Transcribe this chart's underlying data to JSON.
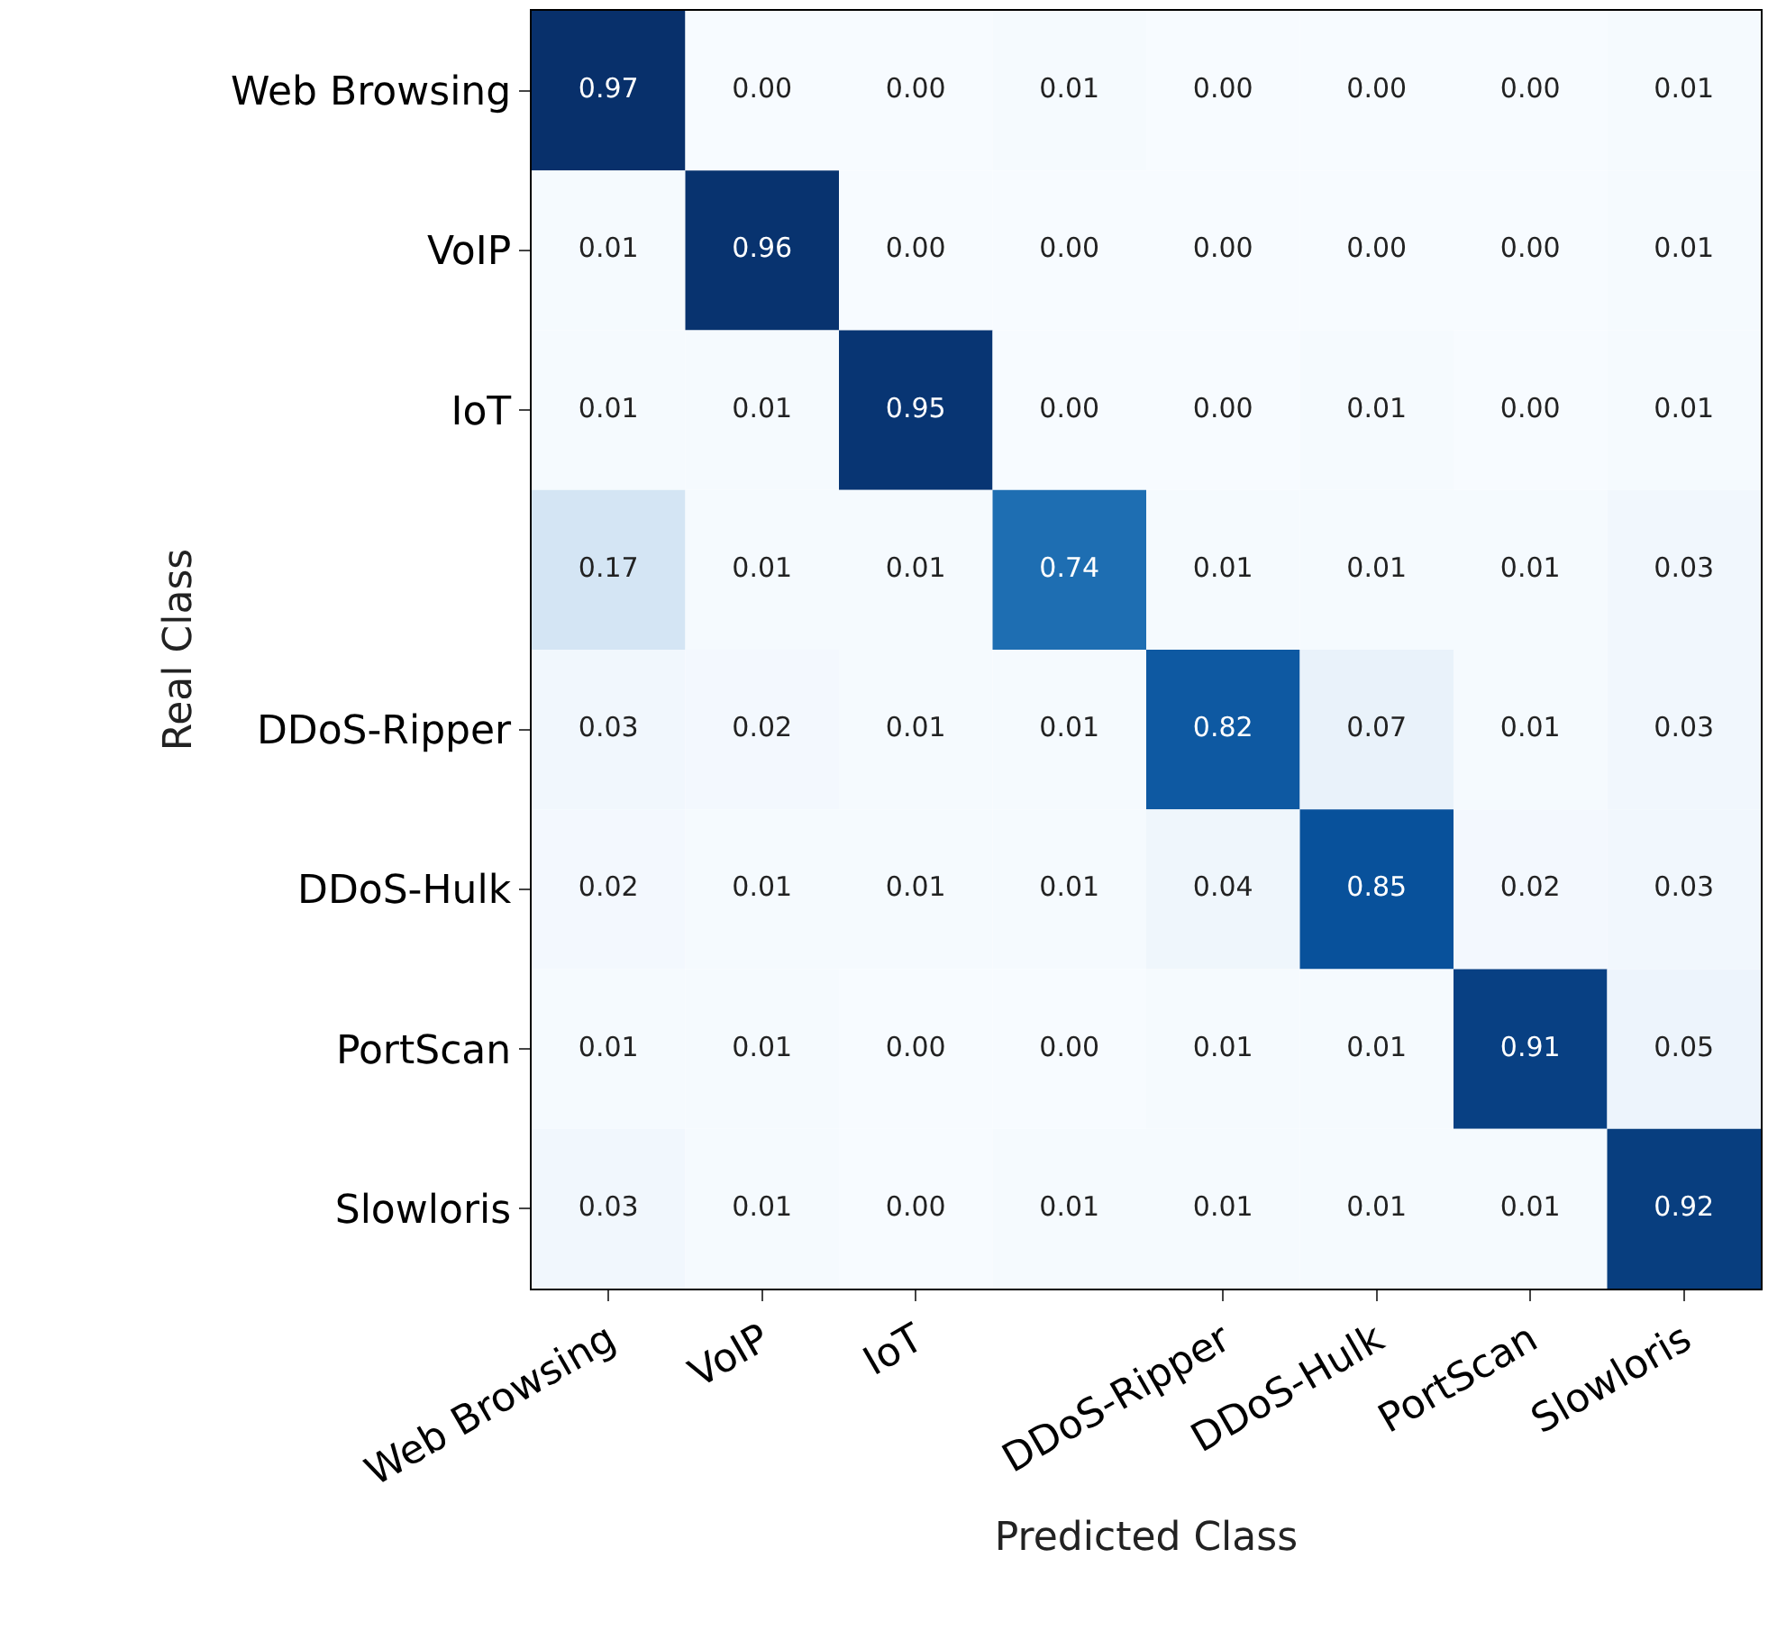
{
  "chart_data": {
    "type": "heatmap",
    "xlabel": "Predicted Class",
    "ylabel": "Real Class",
    "categories": [
      "Web Browsing",
      "VoIP",
      "IoT",
      null,
      "DDoS-Ripper",
      "DDoS-Hulk",
      "PortScan",
      "Slowloris"
    ],
    "y_categories": [
      "Web Browsing",
      "VoIP",
      "IoT",
      null,
      "DDoS-Ripper",
      "DDoS-Hulk",
      "PortScan",
      "Slowloris"
    ],
    "cells": [
      [
        0.97,
        0.0,
        0.0,
        0.01,
        0.0,
        0.0,
        0.0,
        0.01
      ],
      [
        0.01,
        0.96,
        0.0,
        0.0,
        0.0,
        0.0,
        0.0,
        0.01
      ],
      [
        0.01,
        0.01,
        0.95,
        0.0,
        0.0,
        0.01,
        0.0,
        0.01
      ],
      [
        0.17,
        0.01,
        0.01,
        0.74,
        0.01,
        0.01,
        0.01,
        0.03
      ],
      [
        0.03,
        0.02,
        0.01,
        0.01,
        0.82,
        0.07,
        0.01,
        0.03
      ],
      [
        0.02,
        0.01,
        0.01,
        0.01,
        0.04,
        0.85,
        0.02,
        0.03
      ],
      [
        0.01,
        0.01,
        0.0,
        0.0,
        0.01,
        0.01,
        0.91,
        0.05
      ],
      [
        0.03,
        0.01,
        0.0,
        0.01,
        0.01,
        0.01,
        0.01,
        0.92
      ]
    ],
    "cell_labels": [
      [
        "0.97",
        "0.00",
        "0.00",
        "0.01",
        "0.00",
        "0.00",
        "0.00",
        "0.01"
      ],
      [
        "0.01",
        "0.96",
        "0.00",
        "0.00",
        "0.00",
        "0.00",
        "0.00",
        "0.01"
      ],
      [
        "0.01",
        "0.01",
        "0.95",
        "0.00",
        "0.00",
        "0.01",
        "0.00",
        "0.01"
      ],
      [
        "0.17",
        "0.01",
        "0.01",
        "0.74",
        "0.01",
        "0.01",
        "0.01",
        "0.03"
      ],
      [
        "0.03",
        "0.02",
        "0.01",
        "0.01",
        "0.82",
        "0.07",
        "0.01",
        "0.03"
      ],
      [
        "0.02",
        "0.01",
        "0.01",
        "0.01",
        "0.04",
        "0.85",
        "0.02",
        "0.03"
      ],
      [
        "0.01",
        "0.01",
        "0.00",
        "0.00",
        "0.01",
        "0.01",
        "0.91",
        "0.05"
      ],
      [
        "0.03",
        "0.01",
        "0.00",
        "0.01",
        "0.01",
        "0.01",
        "0.01",
        "0.92"
      ]
    ],
    "grid": false
  }
}
